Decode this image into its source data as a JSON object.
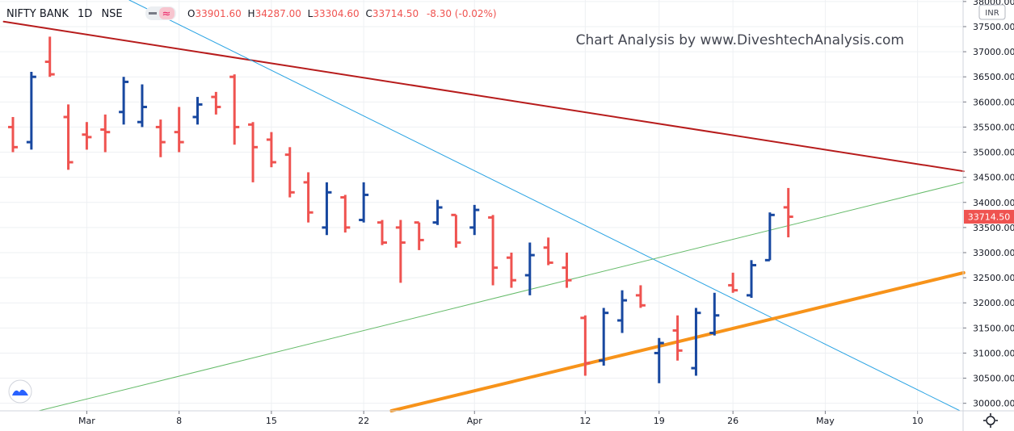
{
  "header": {
    "symbol": "NIFTY BANK",
    "interval": "1D",
    "exchange": "NSE",
    "open_label": "O",
    "open": "33901.60",
    "high_label": "H",
    "high": "34287.00",
    "low_label": "L",
    "low": "33304.60",
    "close_label": "C",
    "close": "33714.50",
    "change": "-8.30 (-0.02%)"
  },
  "watermark": "Chart Analysis by www.DiveshtechAnalysis.com",
  "currency": "INR",
  "last_price": "33714.50",
  "colors": {
    "up": "#1848a0",
    "down": "#ef5350",
    "resistance": "#b71c1c",
    "steep_trend": "#29a3e3",
    "mid_trend": "#66bb6a",
    "support": "#f7931a",
    "grid": "#eef0f3"
  },
  "chart_data": {
    "type": "ohlc",
    "x_labels": [
      {
        "label": "Mar",
        "index": 4
      },
      {
        "label": "8",
        "index": 9
      },
      {
        "label": "15",
        "index": 14
      },
      {
        "label": "22",
        "index": 19
      },
      {
        "label": "Apr",
        "index": 25
      },
      {
        "label": "12",
        "index": 31
      },
      {
        "label": "19",
        "index": 35
      },
      {
        "label": "26",
        "index": 39
      },
      {
        "label": "May",
        "index": 44
      },
      {
        "label": "10",
        "index": 49
      }
    ],
    "y_ticks": [
      30000,
      30500,
      31000,
      31500,
      32000,
      32500,
      33000,
      33500,
      34000,
      34500,
      35000,
      35500,
      36000,
      36500,
      37000,
      37500,
      38000
    ],
    "ylim": [
      29850,
      38030
    ],
    "bars": [
      {
        "i": 0,
        "o": 35500,
        "h": 35700,
        "l": 35000,
        "c": 35100
      },
      {
        "i": 1,
        "o": 35200,
        "h": 36600,
        "l": 35050,
        "c": 36500
      },
      {
        "i": 2,
        "o": 36800,
        "h": 37300,
        "l": 36500,
        "c": 36550
      },
      {
        "i": 3,
        "o": 35700,
        "h": 35950,
        "l": 34650,
        "c": 34800
      },
      {
        "i": 4,
        "o": 35350,
        "h": 35600,
        "l": 35050,
        "c": 35300
      },
      {
        "i": 5,
        "o": 35450,
        "h": 35750,
        "l": 35000,
        "c": 35400
      },
      {
        "i": 6,
        "o": 35800,
        "h": 36500,
        "l": 35550,
        "c": 36400
      },
      {
        "i": 7,
        "o": 35600,
        "h": 36350,
        "l": 35500,
        "c": 35900
      },
      {
        "i": 8,
        "o": 35500,
        "h": 35650,
        "l": 34900,
        "c": 35200
      },
      {
        "i": 9,
        "o": 35400,
        "h": 35900,
        "l": 35000,
        "c": 35200
      },
      {
        "i": 10,
        "o": 35700,
        "h": 36100,
        "l": 35550,
        "c": 35950
      },
      {
        "i": 11,
        "o": 36100,
        "h": 36200,
        "l": 35750,
        "c": 35900
      },
      {
        "i": 12,
        "o": 36500,
        "h": 36550,
        "l": 35150,
        "c": 35500
      },
      {
        "i": 13,
        "o": 35550,
        "h": 35600,
        "l": 34400,
        "c": 35100
      },
      {
        "i": 14,
        "o": 35250,
        "h": 35400,
        "l": 34700,
        "c": 34800
      },
      {
        "i": 15,
        "o": 34950,
        "h": 35100,
        "l": 34100,
        "c": 34200
      },
      {
        "i": 16,
        "o": 34400,
        "h": 34600,
        "l": 33600,
        "c": 33800
      },
      {
        "i": 17,
        "o": 33500,
        "h": 34400,
        "l": 33350,
        "c": 34200
      },
      {
        "i": 18,
        "o": 34100,
        "h": 34150,
        "l": 33400,
        "c": 33500
      },
      {
        "i": 19,
        "o": 33650,
        "h": 34400,
        "l": 33600,
        "c": 34150
      },
      {
        "i": 20,
        "o": 33600,
        "h": 33650,
        "l": 33150,
        "c": 33200
      },
      {
        "i": 21,
        "o": 33500,
        "h": 33650,
        "l": 32400,
        "c": 33200
      },
      {
        "i": 22,
        "o": 33600,
        "h": 33600,
        "l": 33050,
        "c": 33250
      },
      {
        "i": 23,
        "o": 33600,
        "h": 34050,
        "l": 33550,
        "c": 33900
      },
      {
        "i": 24,
        "o": 33750,
        "h": 33750,
        "l": 33100,
        "c": 33200
      },
      {
        "i": 25,
        "o": 33500,
        "h": 33950,
        "l": 33350,
        "c": 33850
      },
      {
        "i": 26,
        "o": 33700,
        "h": 33750,
        "l": 32350,
        "c": 32700
      },
      {
        "i": 27,
        "o": 32900,
        "h": 33000,
        "l": 32300,
        "c": 32450
      },
      {
        "i": 28,
        "o": 32550,
        "h": 33200,
        "l": 32150,
        "c": 32950
      },
      {
        "i": 29,
        "o": 33100,
        "h": 33300,
        "l": 32750,
        "c": 32800
      },
      {
        "i": 30,
        "o": 32700,
        "h": 33000,
        "l": 32300,
        "c": 32450
      },
      {
        "i": 31,
        "o": 31700,
        "h": 31750,
        "l": 30550,
        "c": 30800
      },
      {
        "i": 32,
        "o": 30850,
        "h": 31900,
        "l": 30750,
        "c": 31800
      },
      {
        "i": 33,
        "o": 31650,
        "h": 32250,
        "l": 31400,
        "c": 32050
      },
      {
        "i": 34,
        "o": 32150,
        "h": 32350,
        "l": 31900,
        "c": 31950
      },
      {
        "i": 35,
        "o": 31000,
        "h": 31300,
        "l": 30400,
        "c": 31200
      },
      {
        "i": 36,
        "o": 31450,
        "h": 31750,
        "l": 30850,
        "c": 31050
      },
      {
        "i": 37,
        "o": 30700,
        "h": 31900,
        "l": 30550,
        "c": 31800
      },
      {
        "i": 38,
        "o": 31400,
        "h": 32200,
        "l": 31350,
        "c": 31750
      },
      {
        "i": 39,
        "o": 32350,
        "h": 32600,
        "l": 32200,
        "c": 32250
      },
      {
        "i": 40,
        "o": 32150,
        "h": 32850,
        "l": 32100,
        "c": 32750
      },
      {
        "i": 41,
        "o": 32850,
        "h": 33800,
        "l": 32850,
        "c": 33750
      },
      {
        "i": 42,
        "o": 33901.6,
        "h": 34287,
        "l": 33304.6,
        "c": 33714.5
      }
    ],
    "trendlines": [
      {
        "name": "resistance",
        "x1": -0.5,
        "y1": 37600,
        "x2": 51.5,
        "y2": 34620,
        "color": "#b71c1c",
        "width": 2
      },
      {
        "name": "steep",
        "x1": 6.3,
        "y1": 38030,
        "x2": 51.3,
        "y2": 29850,
        "color": "#29a3e3",
        "width": 1
      },
      {
        "name": "mid",
        "x1": 1.4,
        "y1": 29850,
        "x2": 51.5,
        "y2": 34400,
        "color": "#66bb6a",
        "width": 1
      },
      {
        "name": "support",
        "x1": 20.5,
        "y1": 29850,
        "x2": 51.5,
        "y2": 32600,
        "color": "#f7931a",
        "width": 4
      }
    ]
  }
}
